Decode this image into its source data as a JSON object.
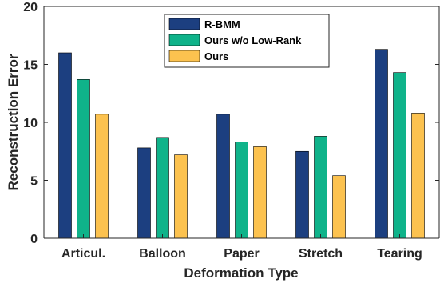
{
  "chart_data": {
    "type": "bar",
    "categories": [
      "Articul.",
      "Balloon",
      "Paper",
      "Stretch",
      "Tearing"
    ],
    "series": [
      {
        "name": "R-BMM",
        "color": "#1c3f80",
        "values": [
          16.0,
          7.8,
          10.7,
          7.5,
          16.3
        ]
      },
      {
        "name": "Ours w/o Low-Rank",
        "color": "#0fb38a",
        "values": [
          13.7,
          8.7,
          8.3,
          8.8,
          14.3
        ]
      },
      {
        "name": "Ours",
        "color": "#fcc24f",
        "values": [
          10.7,
          7.2,
          7.9,
          5.4,
          10.8
        ]
      }
    ],
    "xlabel": "Deformation Type",
    "ylabel": "Reconstruction Error",
    "ylim": [
      0,
      20
    ],
    "yticks": [
      0,
      5,
      10,
      15,
      20
    ],
    "grid": false,
    "legend_position": "top-center"
  }
}
